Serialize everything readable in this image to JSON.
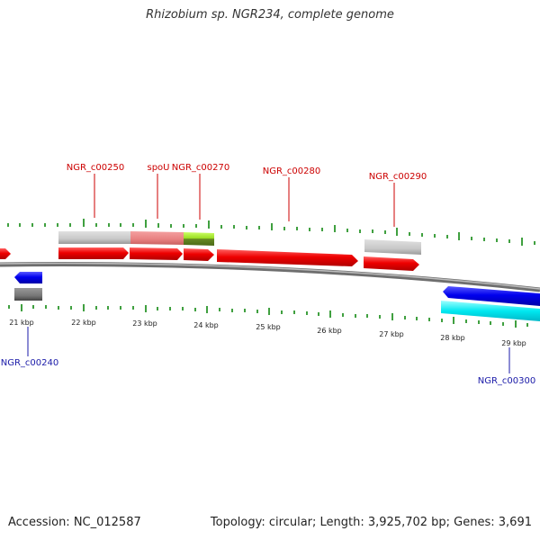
{
  "title": "Rhizobium sp. NGR234, complete genome",
  "footer": {
    "accession": "Accession: NC_012587",
    "summary": "Topology: circular; Length: 3,925,702 bp; Genes: 3,691"
  },
  "colors": {
    "gene_forward": "#ee0000",
    "gene_reverse": "#0000ee",
    "label_top": "#cc0000",
    "label_bottom": "#1a1aa8",
    "tick": "#008000",
    "backbone": "#888888"
  },
  "gene_labels_top": [
    "NGR_c00250",
    "spoU",
    "NGR_c00270",
    "NGR_c00280",
    "NGR_c00290"
  ],
  "gene_labels_bottom": [
    "NGR_c00240",
    "NGR_c00300"
  ],
  "kbp_labels": [
    "21 kbp",
    "22 kbp",
    "23 kbp",
    "24 kbp",
    "25 kbp",
    "26 kbp",
    "27 kbp",
    "28 kbp",
    "29 kbp"
  ]
}
